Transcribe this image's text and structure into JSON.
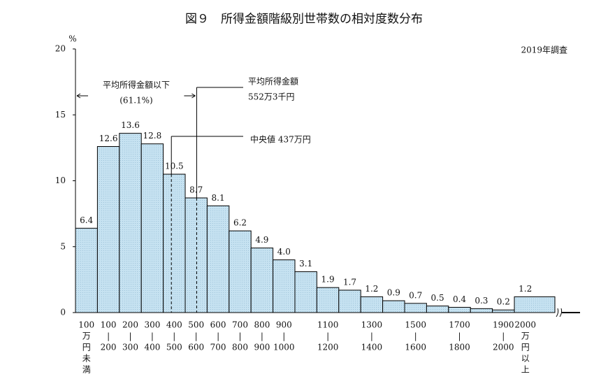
{
  "chart_data": {
    "type": "bar",
    "title": "図９　所得金額階級別世帯数の相対度数分布",
    "y_label": "%",
    "note": "2019年調査",
    "categories": [
      [
        "100",
        "万",
        "円",
        "未",
        "満"
      ],
      [
        "100",
        "|",
        "200"
      ],
      [
        "200",
        "|",
        "300"
      ],
      [
        "300",
        "|",
        "400"
      ],
      [
        "400",
        "|",
        "500"
      ],
      [
        "500",
        "|",
        "600"
      ],
      [
        "600",
        "|",
        "700"
      ],
      [
        "700",
        "|",
        "800"
      ],
      [
        "800",
        "|",
        "900"
      ],
      [
        "900",
        "|",
        "1000"
      ],
      null,
      [
        "1100",
        "|",
        "1200"
      ],
      null,
      [
        "1300",
        "|",
        "1400"
      ],
      null,
      [
        "1500",
        "|",
        "1600"
      ],
      null,
      [
        "1700",
        "|",
        "1800"
      ],
      null,
      [
        "1900",
        "|",
        "2000"
      ],
      [
        "2000",
        "万",
        "円",
        "以",
        "上"
      ]
    ],
    "values": [
      6.4,
      12.6,
      13.6,
      12.8,
      10.5,
      8.7,
      8.1,
      6.2,
      4.9,
      4.0,
      3.1,
      1.9,
      1.7,
      1.2,
      0.9,
      0.7,
      0.5,
      0.4,
      0.3,
      0.2,
      1.2
    ],
    "value_labels": [
      "6.4",
      "12.6",
      "13.6",
      "12.8",
      "10.5",
      "8.7",
      "8.1",
      "6.2",
      "4.9",
      "4.0",
      "3.1",
      "1.9",
      "1.7",
      "1.2",
      "0.9",
      "0.7",
      "0.5",
      "0.4",
      "0.3",
      "0.2",
      "1.2"
    ],
    "color": "#c6e2f1",
    "ylim": [
      0,
      20
    ],
    "yticks": [
      0,
      5,
      10,
      15,
      20
    ],
    "mean": 552.3,
    "median": 437,
    "annotations": {
      "below_mean": [
        "平均所得金額以下",
        "(61.1%)"
      ],
      "mean": [
        "平均所得金額",
        "552万3千円"
      ],
      "median": "中央値 437万円"
    }
  }
}
